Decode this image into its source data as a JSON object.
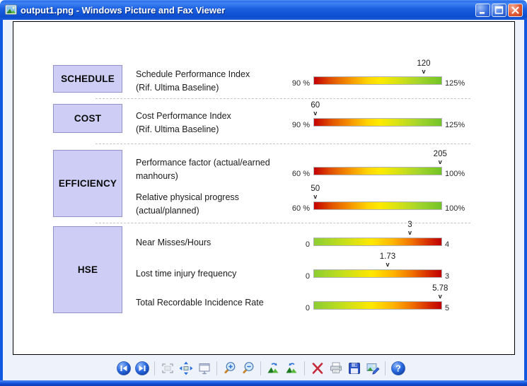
{
  "window": {
    "title": "output1.png - Windows Picture and Fax Viewer",
    "app_icon": "picture-file-icon",
    "controls": {
      "minimize": "Minimize",
      "maximize": "Maximize",
      "close": "Close"
    }
  },
  "chart_data": {
    "type": "bar",
    "subtype": "kpi-gauge-strips",
    "marker_glyph": "v",
    "sections": [
      {
        "label": "SCHEDULE"
      },
      {
        "label": "COST"
      },
      {
        "label": "EFFICIENCY"
      },
      {
        "label": "HSE"
      }
    ],
    "metrics": [
      {
        "section": "SCHEDULE",
        "name": "Schedule Performance Index\n(Rif. Ultima Baseline)",
        "value": 120,
        "value_display": "120",
        "min": 90,
        "max": 125,
        "min_label": "90 %",
        "max_label": "125%",
        "direction": "red-green"
      },
      {
        "section": "COST",
        "name": "Cost Performance Index\n(Rif. Ultima Baseline)",
        "value": 60,
        "value_display": "60",
        "min": 90,
        "max": 125,
        "min_label": "90 %",
        "max_label": "125%",
        "direction": "red-green"
      },
      {
        "section": "EFFICIENCY",
        "name": "Performance factor (actual/earned\nmanhours)",
        "value": 205,
        "value_display": "205",
        "min": 60,
        "max": 100,
        "min_label": "60 %",
        "max_label": "100%",
        "direction": "red-green"
      },
      {
        "section": "EFFICIENCY",
        "name": "Relative physical progress\n(actual/planned)",
        "value": 50,
        "value_display": "50",
        "min": 60,
        "max": 100,
        "min_label": "60 %",
        "max_label": "100%",
        "direction": "red-green"
      },
      {
        "section": "HSE",
        "name": "Near Misses/Hours",
        "value": 3,
        "value_display": "3",
        "min": 0,
        "max": 4,
        "min_label": "0",
        "max_label": "4",
        "direction": "green-red"
      },
      {
        "section": "HSE",
        "name": "Lost time injury frequency",
        "value": 1.73,
        "value_display": "1.73",
        "min": 0,
        "max": 3,
        "min_label": "0",
        "max_label": "3",
        "direction": "green-red"
      },
      {
        "section": "HSE",
        "name": "Total Recordable Incidence Rate",
        "value": 5.78,
        "value_display": "5.78",
        "min": 0,
        "max": 5,
        "min_label": "0",
        "max_label": "5",
        "direction": "green-red"
      }
    ]
  },
  "toolbar": {
    "buttons": [
      "previous-image",
      "next-image",
      "best-fit",
      "actual-size",
      "start-slideshow",
      "zoom-in",
      "zoom-out",
      "rotate-clockwise",
      "rotate-counterclockwise",
      "delete",
      "print",
      "save-copy",
      "edit-image",
      "help"
    ]
  },
  "colors": {
    "titlebar_blue": "#1b5fe0",
    "box_fill": "#cdcdf6",
    "box_border": "#9091c8",
    "bar_red": "#c40000",
    "bar_green": "#72c327",
    "client_bg": "#edf2fb"
  }
}
